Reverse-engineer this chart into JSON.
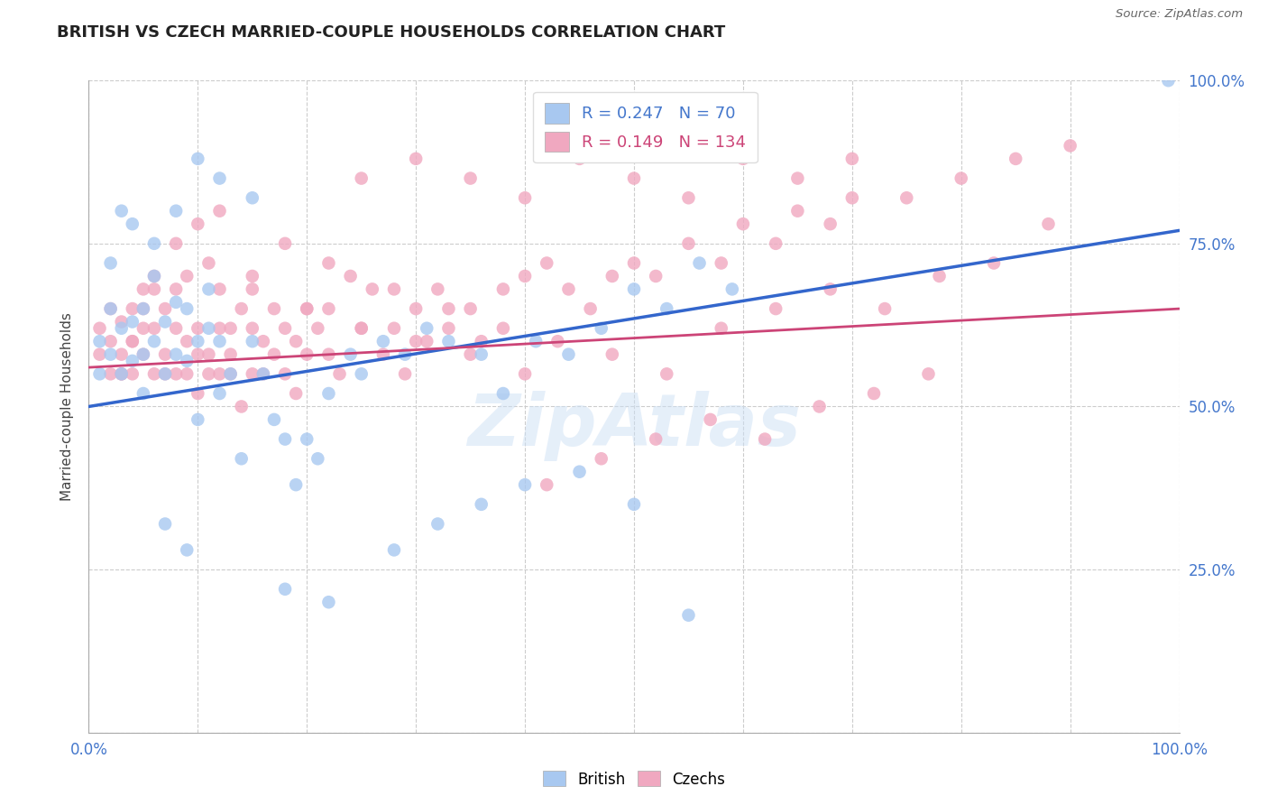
{
  "title": "BRITISH VS CZECH MARRIED-COUPLE HOUSEHOLDS CORRELATION CHART",
  "source": "Source: ZipAtlas.com",
  "ylabel": "Married-couple Households",
  "xlim": [
    0,
    1
  ],
  "ylim": [
    0,
    1
  ],
  "bg_color": "#ffffff",
  "grid_color": "#cccccc",
  "british_color": "#a8c8f0",
  "czech_color": "#f0a8c0",
  "british_line_color": "#3366cc",
  "czech_line_color": "#cc4477",
  "R_british": 0.247,
  "N_british": 70,
  "R_czech": 0.149,
  "N_czech": 134,
  "british_line_x0": 0.0,
  "british_line_y0": 0.5,
  "british_line_x1": 1.0,
  "british_line_y1": 0.77,
  "czech_line_x0": 0.0,
  "czech_line_y0": 0.56,
  "czech_line_x1": 1.0,
  "czech_line_y1": 0.65,
  "british_points_x": [
    0.01,
    0.01,
    0.02,
    0.02,
    0.03,
    0.03,
    0.04,
    0.04,
    0.05,
    0.05,
    0.05,
    0.06,
    0.06,
    0.07,
    0.07,
    0.08,
    0.08,
    0.09,
    0.09,
    0.1,
    0.1,
    0.11,
    0.11,
    0.12,
    0.12,
    0.13,
    0.14,
    0.15,
    0.16,
    0.17,
    0.18,
    0.19,
    0.2,
    0.21,
    0.22,
    0.24,
    0.25,
    0.27,
    0.29,
    0.31,
    0.33,
    0.36,
    0.38,
    0.41,
    0.44,
    0.47,
    0.5,
    0.53,
    0.56,
    0.59,
    0.15,
    0.08,
    0.12,
    0.1,
    0.06,
    0.04,
    0.03,
    0.02,
    0.07,
    0.09,
    0.18,
    0.22,
    0.28,
    0.32,
    0.36,
    0.4,
    0.45,
    0.5,
    0.55,
    0.99
  ],
  "british_points_y": [
    0.6,
    0.55,
    0.58,
    0.65,
    0.62,
    0.55,
    0.63,
    0.57,
    0.58,
    0.65,
    0.52,
    0.6,
    0.7,
    0.55,
    0.63,
    0.58,
    0.66,
    0.57,
    0.65,
    0.6,
    0.48,
    0.62,
    0.68,
    0.52,
    0.6,
    0.55,
    0.42,
    0.6,
    0.55,
    0.48,
    0.45,
    0.38,
    0.45,
    0.42,
    0.52,
    0.58,
    0.55,
    0.6,
    0.58,
    0.62,
    0.6,
    0.58,
    0.52,
    0.6,
    0.58,
    0.62,
    0.68,
    0.65,
    0.72,
    0.68,
    0.82,
    0.8,
    0.85,
    0.88,
    0.75,
    0.78,
    0.8,
    0.72,
    0.32,
    0.28,
    0.22,
    0.2,
    0.28,
    0.32,
    0.35,
    0.38,
    0.4,
    0.35,
    0.18,
    1.0
  ],
  "czech_points_x": [
    0.01,
    0.01,
    0.02,
    0.02,
    0.02,
    0.03,
    0.03,
    0.03,
    0.04,
    0.04,
    0.04,
    0.05,
    0.05,
    0.05,
    0.06,
    0.06,
    0.06,
    0.07,
    0.07,
    0.07,
    0.08,
    0.08,
    0.08,
    0.09,
    0.09,
    0.09,
    0.1,
    0.1,
    0.1,
    0.11,
    0.11,
    0.11,
    0.12,
    0.12,
    0.12,
    0.13,
    0.13,
    0.13,
    0.14,
    0.14,
    0.15,
    0.15,
    0.15,
    0.16,
    0.16,
    0.17,
    0.17,
    0.18,
    0.18,
    0.19,
    0.19,
    0.2,
    0.2,
    0.21,
    0.22,
    0.22,
    0.23,
    0.24,
    0.25,
    0.26,
    0.27,
    0.28,
    0.29,
    0.3,
    0.31,
    0.32,
    0.33,
    0.35,
    0.36,
    0.38,
    0.4,
    0.42,
    0.44,
    0.46,
    0.48,
    0.5,
    0.52,
    0.55,
    0.58,
    0.6,
    0.63,
    0.65,
    0.68,
    0.7,
    0.1,
    0.08,
    0.06,
    0.05,
    0.04,
    0.03,
    0.15,
    0.2,
    0.25,
    0.3,
    0.35,
    0.4,
    0.12,
    0.18,
    0.22,
    0.28,
    0.33,
    0.38,
    0.43,
    0.48,
    0.53,
    0.58,
    0.63,
    0.68,
    0.73,
    0.78,
    0.83,
    0.88,
    0.25,
    0.3,
    0.35,
    0.4,
    0.45,
    0.5,
    0.55,
    0.6,
    0.65,
    0.7,
    0.75,
    0.8,
    0.85,
    0.9,
    0.42,
    0.47,
    0.52,
    0.57,
    0.62,
    0.67,
    0.72,
    0.77
  ],
  "czech_points_y": [
    0.58,
    0.62,
    0.55,
    0.6,
    0.65,
    0.58,
    0.63,
    0.55,
    0.6,
    0.65,
    0.55,
    0.62,
    0.58,
    0.68,
    0.55,
    0.62,
    0.68,
    0.58,
    0.65,
    0.55,
    0.62,
    0.55,
    0.68,
    0.6,
    0.55,
    0.7,
    0.62,
    0.58,
    0.52,
    0.58,
    0.72,
    0.55,
    0.62,
    0.55,
    0.68,
    0.58,
    0.62,
    0.55,
    0.65,
    0.5,
    0.62,
    0.55,
    0.68,
    0.6,
    0.55,
    0.65,
    0.58,
    0.62,
    0.55,
    0.6,
    0.52,
    0.65,
    0.58,
    0.62,
    0.58,
    0.65,
    0.55,
    0.7,
    0.62,
    0.68,
    0.58,
    0.62,
    0.55,
    0.65,
    0.6,
    0.68,
    0.62,
    0.65,
    0.6,
    0.68,
    0.7,
    0.72,
    0.68,
    0.65,
    0.7,
    0.72,
    0.7,
    0.75,
    0.72,
    0.78,
    0.75,
    0.8,
    0.78,
    0.82,
    0.78,
    0.75,
    0.7,
    0.65,
    0.6,
    0.55,
    0.7,
    0.65,
    0.62,
    0.6,
    0.58,
    0.55,
    0.8,
    0.75,
    0.72,
    0.68,
    0.65,
    0.62,
    0.6,
    0.58,
    0.55,
    0.62,
    0.65,
    0.68,
    0.65,
    0.7,
    0.72,
    0.78,
    0.85,
    0.88,
    0.85,
    0.82,
    0.88,
    0.85,
    0.82,
    0.88,
    0.85,
    0.88,
    0.82,
    0.85,
    0.88,
    0.9,
    0.38,
    0.42,
    0.45,
    0.48,
    0.45,
    0.5,
    0.52,
    0.55
  ]
}
